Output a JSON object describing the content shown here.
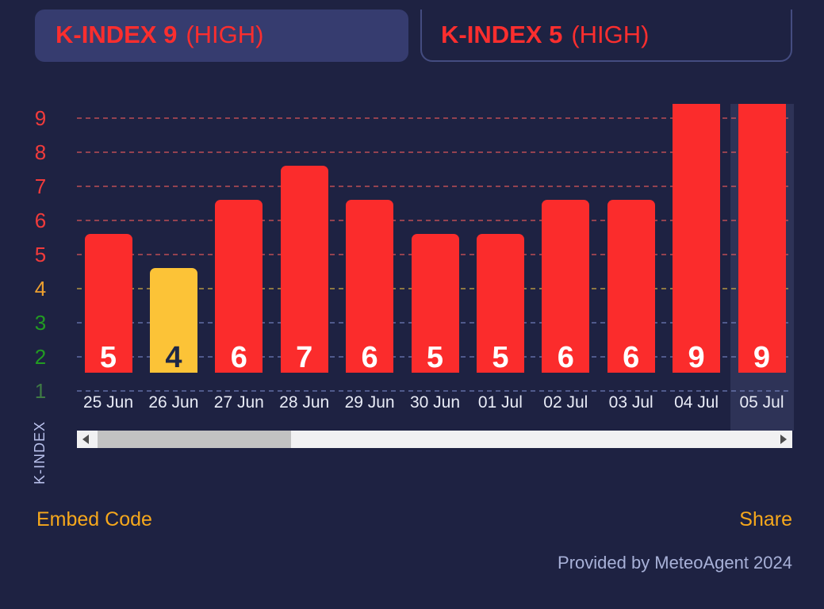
{
  "tabs": [
    {
      "title": "K-INDEX 9",
      "suffix": "(HIGH)",
      "active": true
    },
    {
      "title": "K-INDEX 5",
      "suffix": "(HIGH)",
      "active": false
    }
  ],
  "chart_data": {
    "type": "bar",
    "ylabel": "K-INDEX",
    "categories": [
      "25 Jun",
      "26 Jun",
      "27 Jun",
      "28 Jun",
      "29 Jun",
      "30 Jun",
      "01 Jul",
      "02 Jul",
      "03 Jul",
      "04 Jul",
      "05 Jul"
    ],
    "values": [
      5,
      4,
      6,
      7,
      6,
      5,
      5,
      6,
      6,
      9,
      9
    ],
    "bar_colors": [
      "red",
      "yellow",
      "red",
      "red",
      "red",
      "red",
      "red",
      "red",
      "red",
      "red",
      "red"
    ],
    "highlighted_category": "05 Jul",
    "ylim": [
      1,
      9
    ],
    "yticks": [
      9,
      8,
      7,
      6,
      5,
      4,
      3,
      2,
      1
    ],
    "ytick_colors": [
      "#f13b3b",
      "#f13b3b",
      "#f13b3b",
      "#f13b3b",
      "#f13b3b",
      "#eda02f",
      "#229c22",
      "#229c22",
      "#3f7a44"
    ],
    "grid": "dashed-horizontal",
    "legend": "none"
  },
  "footer": {
    "embed_label": "Embed Code",
    "share_label": "Share",
    "credit": "Provided by MeteoAgent 2024"
  },
  "icons": {
    "scroll_left": "left-triangle",
    "scroll_right": "right-triangle"
  },
  "colors": {
    "background": "#1e2242",
    "tab_active_bg": "#363c6f",
    "tab_border": "#5a66aa",
    "title_red": "#fb2e2e",
    "bar_red": "#fb2c2c",
    "bar_yellow": "#fcc337",
    "value_on_red": "#ffffff",
    "value_on_yellow": "#1e2746",
    "highlight_band": "#2e3357",
    "grid_red": "rgba(244,92,92,0.55)",
    "grid_yellow": "rgba(216,178,66,0.6)",
    "grid_blue": "rgba(122,137,200,0.55)",
    "date_text": "#e8ebf6",
    "link_orange": "#f6a81c",
    "credit_text": "#a8b1d8",
    "scroll_track": "#f1f1f2",
    "scroll_thumb": "#c2c2c2"
  }
}
